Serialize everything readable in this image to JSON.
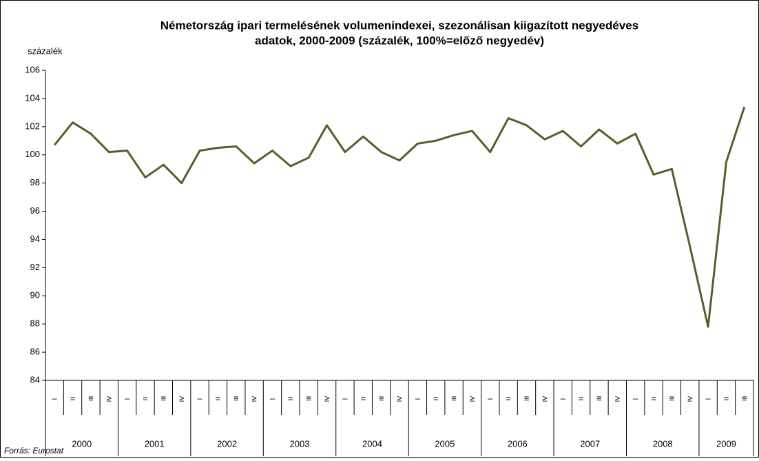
{
  "chart_data": {
    "type": "line",
    "title": [
      "Németország ipari termelésének volumenindexei, szezonálisan kiigazított negyedéves",
      "adatok, 2000-2009 (százalék, 100%=előző negyedév)"
    ],
    "y_label": "százalék",
    "source": "Forrás: Eurostat",
    "categories": [
      "–",
      "=",
      "≡",
      "≥",
      "–",
      "=",
      "≡",
      "≥",
      "–",
      "=",
      "≡",
      "≥",
      "–",
      "=",
      "≡",
      "≥",
      "–",
      "=",
      "≡",
      "≥",
      "–",
      "=",
      "≡",
      "≥",
      "–",
      "=",
      "≡",
      "≥",
      "–",
      "=",
      "≡",
      "≥",
      "–",
      "=",
      "≡",
      "≥",
      "–",
      "=",
      "≡"
    ],
    "years": [
      "2000",
      "2001",
      "2002",
      "2003",
      "2004",
      "2005",
      "2006",
      "2007",
      "2008",
      "2009"
    ],
    "series": [
      {
        "name": "ipari termelés",
        "color": "#4f6228",
        "values": [
          100.7,
          102.3,
          101.5,
          100.2,
          100.3,
          98.4,
          99.3,
          98.0,
          100.3,
          100.5,
          100.6,
          99.4,
          100.3,
          99.2,
          99.8,
          102.1,
          100.2,
          101.3,
          100.2,
          99.6,
          100.8,
          101.0,
          101.4,
          101.7,
          100.2,
          102.6,
          102.1,
          101.1,
          101.7,
          100.6,
          101.8,
          100.8,
          101.5,
          98.6,
          99.0,
          93.5,
          87.8,
          99.5,
          103.4
        ]
      }
    ],
    "ylim": [
      84,
      106
    ],
    "yticks": [
      84,
      86,
      88,
      90,
      92,
      94,
      96,
      98,
      100,
      102,
      104,
      106
    ],
    "grid": false
  }
}
